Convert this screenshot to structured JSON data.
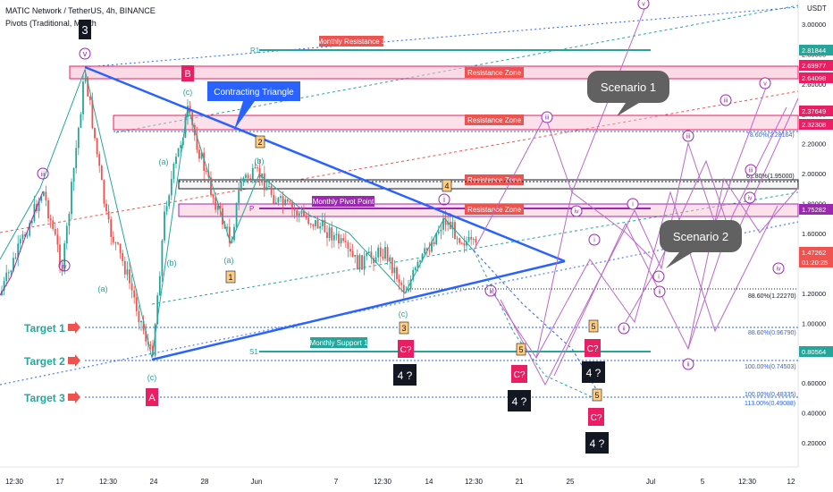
{
  "header": {
    "title": "MATIC Network / TetherUS, 4h, BINANCE",
    "indicator": "Pivots (Traditional, Month"
  },
  "axis": {
    "currency": "USDT",
    "y_ticks": [
      "3.00000",
      "2.80000",
      "2.60000",
      "2.40000",
      "2.20000",
      "2.00000",
      "1.80000",
      "1.60000",
      "1.40000",
      "1.20000",
      "1.00000",
      "0.80000",
      "0.60000",
      "0.40000",
      "0.20000"
    ],
    "x_ticks": [
      "12:30",
      "17",
      "12:30",
      "24",
      "28",
      "Jun",
      "7",
      "12:30",
      "14",
      "12:30",
      "21",
      "25",
      "Jul",
      "5",
      "12:30",
      "12"
    ]
  },
  "price_tags": [
    {
      "value": "2.81844",
      "bg": "#26a69a",
      "fg": "#ffffff"
    },
    {
      "value": "2.69977",
      "bg": "#e91e63",
      "fg": "#ffffff"
    },
    {
      "value": "2.64098",
      "bg": "#e91e63",
      "fg": "#ffffff"
    },
    {
      "value": "2.37649",
      "bg": "#e91e63",
      "fg": "#ffffff"
    },
    {
      "value": "2.32308",
      "bg": "#e91e63",
      "fg": "#ffffff"
    },
    {
      "value": "1.75282",
      "bg": "#9c27b0",
      "fg": "#ffffff"
    },
    {
      "value": "1.47262",
      "bg": "#ef5350",
      "fg": "#ffffff"
    },
    {
      "value": "01:20:25",
      "bg": "#ef5350",
      "fg": "#ffffff"
    },
    {
      "value": "0.80564",
      "bg": "#26a69a",
      "fg": "#ffffff"
    }
  ],
  "zones": {
    "monthly_resistance": "Monthly Resistance 1",
    "resistance": "Resistance Zone",
    "monthly_pivot": "Monthly Pivot Point",
    "monthly_support": "Monthly Support 1"
  },
  "pivot_labels": {
    "r1": "R1",
    "p": "P",
    "s1": "S1"
  },
  "fib_labels": {
    "f786": "78.60%(2.28164)",
    "f618": "61.80%(1.95000)",
    "f886a": "88.60%(1.22270)",
    "f886b": "88.60%(0.96790)",
    "f100a": "100.00%(0.74503)",
    "f100b": "100.00%(0.48335)",
    "f113": "113.00%(0.49088)"
  },
  "callouts": {
    "triangle": "Contracting Triangle",
    "scenario1": "Scenario 1",
    "scenario2": "Scenario 2"
  },
  "targets": [
    "Target 1",
    "Target 2",
    "Target 3"
  ],
  "wave_labels": {
    "three": "3",
    "v": "v",
    "iii": "iii",
    "iv": "iv",
    "a_big": "A",
    "b_big": "B",
    "c_small": "(c)",
    "a_small": "(a)",
    "b_small": "(b)",
    "two": "2",
    "one": "1",
    "four": "4",
    "five": "5",
    "three_small": "3",
    "i": "i",
    "ii": "ii",
    "c_q": "C?",
    "four_q": "4 ?"
  }
}
